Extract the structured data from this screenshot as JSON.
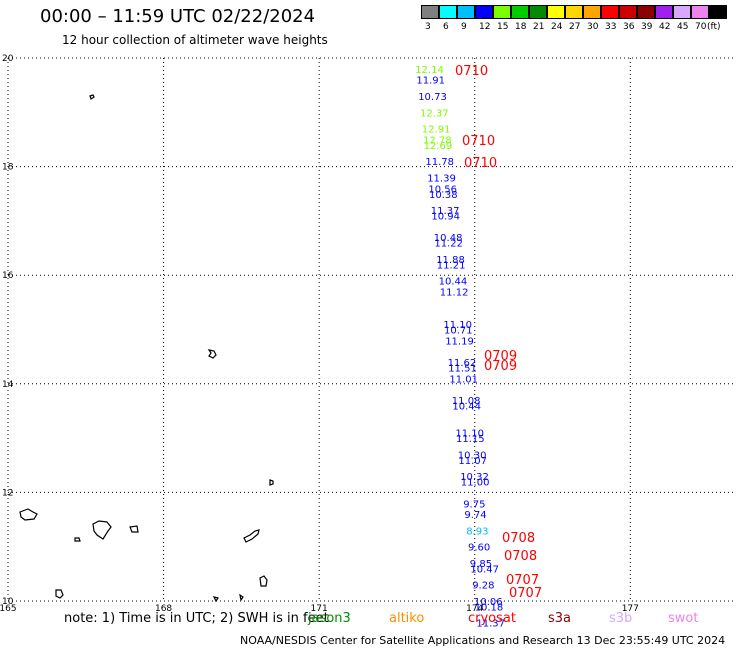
{
  "header": {
    "title": "00:00 – 11:59 UTC 02/22/2024",
    "subtitle": "12 hour collection of altimeter wave heights"
  },
  "legend": {
    "unit": "(ft)",
    "bins": [
      {
        "label": "3",
        "color": "#808080"
      },
      {
        "label": "6",
        "color": "#00ffff"
      },
      {
        "label": "9",
        "color": "#00bfff"
      },
      {
        "label": "12",
        "color": "#0000ff"
      },
      {
        "label": "15",
        "color": "#7cfc00"
      },
      {
        "label": "18",
        "color": "#00cd00"
      },
      {
        "label": "21",
        "color": "#008b00"
      },
      {
        "label": "24",
        "color": "#ffff00"
      },
      {
        "label": "27",
        "color": "#ffd700"
      },
      {
        "label": "30",
        "color": "#ffa500"
      },
      {
        "label": "33",
        "color": "#ff0000"
      },
      {
        "label": "36",
        "color": "#cd0000"
      },
      {
        "label": "39",
        "color": "#8b0000"
      },
      {
        "label": "42",
        "color": "#a020f0"
      },
      {
        "label": "45",
        "color": "#d8a8ff"
      },
      {
        "label": "70",
        "color": "#ee82ee"
      },
      {
        "label": "",
        "color": "#000000"
      }
    ]
  },
  "map": {
    "lon_range": [
      165,
      179
    ],
    "lat_range": [
      10,
      20
    ],
    "lon_ticks": [
      "165",
      "168",
      "171",
      "174",
      "177"
    ],
    "lat_ticks": [
      "20",
      "18",
      "16",
      "14",
      "12",
      "10"
    ],
    "grid": "dotted",
    "observations": [
      {
        "lon": 174.0,
        "lat": 19.8,
        "text": "12.14",
        "color": "#7cfc00"
      },
      {
        "lon": 174.0,
        "lat": 19.6,
        "text": "11.91",
        "color": "#0000ff"
      },
      {
        "lon": 174.0,
        "lat": 19.3,
        "text": "10.73",
        "color": "#0000ff"
      },
      {
        "lon": 174.0,
        "lat": 19.0,
        "text": "12.37",
        "color": "#7cfc00"
      },
      {
        "lon": 174.0,
        "lat": 18.7,
        "text": "12.91",
        "color": "#7cfc00"
      },
      {
        "lon": 174.0,
        "lat": 18.5,
        "text": "12.78",
        "color": "#7cfc00"
      },
      {
        "lon": 174.0,
        "lat": 18.4,
        "text": "12.69",
        "color": "#7cfc00"
      },
      {
        "lon": 174.0,
        "lat": 18.1,
        "text": "11.78",
        "color": "#0000ff"
      },
      {
        "lon": 174.0,
        "lat": 17.8,
        "text": "11.39",
        "color": "#0000ff"
      },
      {
        "lon": 174.0,
        "lat": 17.6,
        "text": "10.56",
        "color": "#0000ff"
      },
      {
        "lon": 174.0,
        "lat": 17.5,
        "text": "10.38",
        "color": "#0000ff"
      },
      {
        "lon": 174.0,
        "lat": 17.2,
        "text": "11.37",
        "color": "#0000ff"
      },
      {
        "lon": 174.0,
        "lat": 17.1,
        "text": "10.94",
        "color": "#0000ff"
      },
      {
        "lon": 174.0,
        "lat": 16.7,
        "text": "10.48",
        "color": "#0000ff"
      },
      {
        "lon": 174.0,
        "lat": 16.6,
        "text": "11.22",
        "color": "#0000ff"
      },
      {
        "lon": 174.0,
        "lat": 16.3,
        "text": "11.88",
        "color": "#0000ff"
      },
      {
        "lon": 174.0,
        "lat": 16.2,
        "text": "11.21",
        "color": "#0000ff"
      },
      {
        "lon": 174.0,
        "lat": 15.9,
        "text": "10.44",
        "color": "#0000ff"
      },
      {
        "lon": 174.0,
        "lat": 15.7,
        "text": "11.12",
        "color": "#0000ff"
      },
      {
        "lon": 174.0,
        "lat": 15.1,
        "text": "11.10",
        "color": "#0000ff"
      },
      {
        "lon": 174.0,
        "lat": 15.0,
        "text": "10.71",
        "color": "#0000ff"
      },
      {
        "lon": 174.0,
        "lat": 14.8,
        "text": "11.19",
        "color": "#0000ff"
      },
      {
        "lon": 174.0,
        "lat": 14.4,
        "text": "11.62",
        "color": "#0000ff"
      },
      {
        "lon": 174.0,
        "lat": 14.3,
        "text": "11.51",
        "color": "#0000ff"
      },
      {
        "lon": 174.0,
        "lat": 14.1,
        "text": "11.01",
        "color": "#0000ff"
      },
      {
        "lon": 174.0,
        "lat": 13.7,
        "text": "11.08",
        "color": "#0000ff"
      },
      {
        "lon": 174.0,
        "lat": 13.6,
        "text": "10.44",
        "color": "#0000ff"
      },
      {
        "lon": 174.0,
        "lat": 13.1,
        "text": "11.10",
        "color": "#0000ff"
      },
      {
        "lon": 174.0,
        "lat": 13.0,
        "text": "11.15",
        "color": "#0000ff"
      },
      {
        "lon": 174.0,
        "lat": 12.7,
        "text": "10.30",
        "color": "#0000ff"
      },
      {
        "lon": 174.0,
        "lat": 12.6,
        "text": "11.07",
        "color": "#0000ff"
      },
      {
        "lon": 174.0,
        "lat": 12.3,
        "text": "10.32",
        "color": "#0000ff"
      },
      {
        "lon": 174.0,
        "lat": 12.2,
        "text": "11.00",
        "color": "#0000ff"
      },
      {
        "lon": 174.0,
        "lat": 11.8,
        "text": "9.75",
        "color": "#0000ff"
      },
      {
        "lon": 174.0,
        "lat": 11.6,
        "text": "9.74",
        "color": "#0000ff"
      },
      {
        "lon": 174.0,
        "lat": 11.3,
        "text": "8.93",
        "color": "#00bfff"
      },
      {
        "lon": 174.0,
        "lat": 11.0,
        "text": "9.60",
        "color": "#0000ff"
      },
      {
        "lon": 174.0,
        "lat": 10.7,
        "text": "9.85",
        "color": "#0000ff"
      },
      {
        "lon": 174.0,
        "lat": 10.6,
        "text": "10.47",
        "color": "#0000ff"
      },
      {
        "lon": 174.0,
        "lat": 10.3,
        "text": "9.28",
        "color": "#0000ff"
      },
      {
        "lon": 174.0,
        "lat": 10.0,
        "text": "10.06",
        "color": "#0000ff"
      },
      {
        "lon": 174.0,
        "lat": 9.9,
        "text": "10.18",
        "color": "#0000ff"
      },
      {
        "lon": 174.0,
        "lat": 9.6,
        "text": "11.37",
        "color": "#0000ff"
      }
    ],
    "time_marks": [
      {
        "text": "0710",
        "color": "#ff0000"
      },
      {
        "text": "0710",
        "color": "#ff0000"
      },
      {
        "text": "0710",
        "color": "#ff0000"
      },
      {
        "text": "0709",
        "color": "#ff0000"
      },
      {
        "text": "0709",
        "color": "#ff0000"
      },
      {
        "text": "0708",
        "color": "#ff0000"
      },
      {
        "text": "0708",
        "color": "#ff0000"
      },
      {
        "text": "0707",
        "color": "#ff0000"
      },
      {
        "text": "0707",
        "color": "#ff0000"
      }
    ]
  },
  "footer": {
    "note": "note:  1) Time is in UTC;  2) SWH is in feet",
    "satellites": [
      {
        "name": "jason3",
        "color": "#008b00"
      },
      {
        "name": "altiko",
        "color": "#ff8c00"
      },
      {
        "name": "cryosat",
        "color": "#ff0000"
      },
      {
        "name": "s3a",
        "color": "#8b0000"
      },
      {
        "name": "s3b",
        "color": "#d8a8ff"
      },
      {
        "name": "swot",
        "color": "#ee82ee"
      }
    ],
    "credit": "NOAA/NESDIS Center for Satellite Applications and Research     13 Dec 23:55:49 UTC 2024"
  }
}
